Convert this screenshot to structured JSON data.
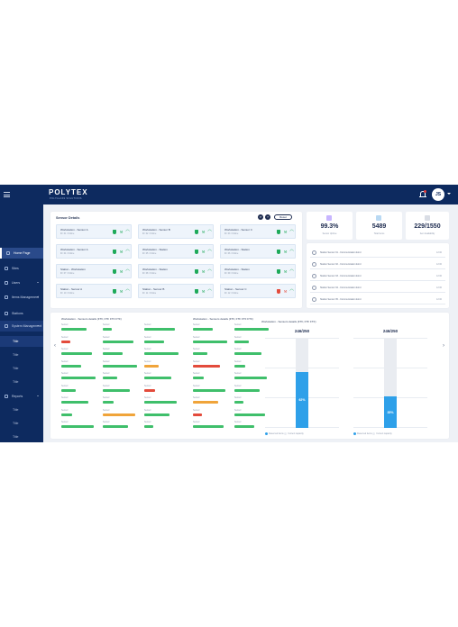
{
  "app": {
    "logo": "POLYTEX",
    "tagline": "POLYGLASS SOLUTIONS",
    "user_initials": "JS"
  },
  "sidebar": {
    "items": [
      {
        "label": "Home Page",
        "active": true
      },
      {
        "label": "Sites"
      },
      {
        "label": "Users"
      },
      {
        "label": "Items Management"
      },
      {
        "label": "Stations"
      },
      {
        "label": "System Management",
        "section": true
      },
      {
        "label": "Title",
        "sub": true,
        "active": true
      },
      {
        "label": "Title",
        "sub": true
      },
      {
        "label": "Title",
        "sub": true
      },
      {
        "label": "Title",
        "sub": true
      },
      {
        "label": "Reports"
      },
      {
        "label": "Title",
        "sub": true
      },
      {
        "label": "Title",
        "sub": true
      },
      {
        "label": "Title",
        "sub": true
      }
    ]
  },
  "sensors": {
    "title": "Sensor Details",
    "reset_label": "Reset",
    "cards": [
      {
        "name": "Workstation - Sensor A",
        "sub": "ID: 01 / Online",
        "status": [
          "g",
          "g",
          "g"
        ]
      },
      {
        "name": "Workstation - Sensor B",
        "sub": "ID: 02 / Online",
        "status": [
          "g",
          "g",
          "g"
        ]
      },
      {
        "name": "Workstation - Sensor C",
        "sub": "ID: 03 / Online",
        "status": [
          "g",
          "g",
          "g"
        ]
      },
      {
        "name": "Workstation - Sensor A",
        "sub": "ID: 04 / Online",
        "status": [
          "g",
          "g",
          "g"
        ]
      },
      {
        "name": "Workstation - Station",
        "sub": "ID: 05 / Online",
        "status": [
          "g",
          "g",
          "g"
        ]
      },
      {
        "name": "Workstation - Station",
        "sub": "ID: 06 / Online",
        "status": [
          "g",
          "g",
          "g"
        ]
      },
      {
        "name": "Station - Workstation",
        "sub": "ID: 07 / Online",
        "status": [
          "g",
          "g",
          "g"
        ]
      },
      {
        "name": "Workstation - Station",
        "sub": "ID: 08 / Online",
        "status": [
          "g",
          "g",
          "g"
        ]
      },
      {
        "name": "Workstation - Station",
        "sub": "ID: 09 / Online",
        "status": [
          "g",
          "g",
          "g"
        ]
      },
      {
        "name": "Station - Sensor A",
        "sub": "ID: 10 / Online",
        "status": [
          "g",
          "g",
          "g"
        ]
      },
      {
        "name": "Station - Sensor B",
        "sub": "ID: 11 / Online",
        "status": [
          "g",
          "g",
          "g"
        ]
      },
      {
        "name": "Station - Sensor C",
        "sub": "ID: 12 / Online",
        "status": [
          "r",
          "r",
          "g"
        ]
      }
    ]
  },
  "kpis": [
    {
      "value": "99.3%",
      "label": "Sensor Uptime"
    },
    {
      "value": "5489",
      "label": "Total Items"
    },
    {
      "value": "229/1550",
      "label": "Item Availability"
    }
  ],
  "events": [
    {
      "text": "Station Sensor 01 - Communication Error",
      "time": "12:00"
    },
    {
      "text": "Station Sensor 02 - Communication Error",
      "time": "12:00"
    },
    {
      "text": "Station Sensor 03 - Communication Error",
      "time": "12:00"
    },
    {
      "text": "Station Sensor 04 - Communication Error",
      "time": "12:00"
    },
    {
      "text": "Station Sensor 05 - Communication Error",
      "time": "12:00"
    }
  ],
  "stations": [
    {
      "title": "Workstation - Sensors details (FTF, FTF FTF FTF)"
    },
    {
      "title": "Workstation - Sensors details (FTF, FTF FTF FTF)"
    }
  ],
  "capacity": [
    {
      "title": "Workstation - Sensors details (FTF, FTF FTF)",
      "value": "246/250",
      "percent": 62,
      "pct_label": "62%"
    },
    {
      "title": "",
      "value": "246/250",
      "percent": 35,
      "pct_label": "35%"
    }
  ],
  "capacity_legend": {
    "a": "Reserved items",
    "b": "Current capacity"
  },
  "colors": {
    "sidebar": "#0d2a5f",
    "accent": "#2ea0e9",
    "ok": "#1eaa5a",
    "warn": "#f0a43a",
    "error": "#e34b3c"
  }
}
